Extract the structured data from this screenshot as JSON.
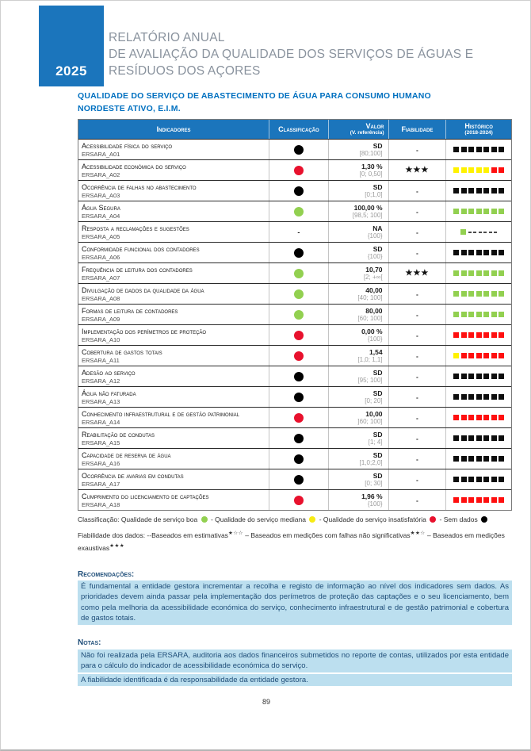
{
  "colors": {
    "brand_blue": "#1B75BC",
    "section_blue": "#0070C0",
    "title_gray": "#8A939E",
    "good_green": "#92D050",
    "medium_yellow": "#FFF200",
    "bad_red": "#FF0F0F",
    "no_data_black": "#000000",
    "note_text_blue": "#1F4E79",
    "highlight_blue": "#BCDFEF"
  },
  "header": {
    "year": "2025",
    "title_line1": "RELATÓRIO ANUAL",
    "title_line2": "DE AVALIAÇÃO DA QUALIDADE DOS SERVIÇOS DE ÁGUAS E",
    "title_line3": "RESÍDUOS DOS AÇORES"
  },
  "section": {
    "title_line1": "QUALIDADE DO SERVIÇO DE ABASTECIMENTO DE ÁGUA PARA CONSUMO HUMANO",
    "title_line2": "NORDESTE ATIVO, E.I.M."
  },
  "table": {
    "columns": {
      "indicadores": "Indicadores",
      "classificacao": "Classificação",
      "valor": "Valor",
      "valor_sub": "(V. referência)",
      "fiabilidade": "Fiabilidade",
      "historico": "Histórico",
      "historico_sub": "(2018-2024)"
    },
    "rows": [
      {
        "name": "Acessibilidade física do serviço",
        "code": "ERSARA_A01",
        "classification": "black",
        "value": "SD",
        "reference": "[80;100]",
        "reliability": "-",
        "history": [
          "black",
          "black",
          "black",
          "black",
          "black",
          "black",
          "black"
        ]
      },
      {
        "name": "Acessibilidade económica do serviço",
        "code": "ERSARA_A02",
        "classification": "red",
        "value": "1,30 %",
        "reference": "[0; 0,50]",
        "reliability": "★★★",
        "history": [
          "yellow",
          "yellow",
          "yellow",
          "yellow",
          "yellow",
          "red",
          "red"
        ]
      },
      {
        "name": "Ocorrência de falhas no abastecimento",
        "code": "ERSARA_A03",
        "classification": "black",
        "value": "SD",
        "reference": "[0;1,0]",
        "reliability": "-",
        "history": [
          "black",
          "black",
          "black",
          "black",
          "black",
          "black",
          "black"
        ]
      },
      {
        "name": "Água Segura",
        "code": "ERSARA_A04",
        "classification": "green",
        "value": "100,00 %",
        "reference": "[98,5; 100]",
        "reliability": "-",
        "history": [
          "green",
          "green",
          "green",
          "green",
          "green",
          "green",
          "green"
        ]
      },
      {
        "name": "Resposta a reclamações e sugestões",
        "code": "ERSARA_A05",
        "classification": "dash",
        "value": "NA",
        "reference": "{100}",
        "reliability": "-",
        "history": [
          "green",
          "dash",
          "dash",
          "dash",
          "dash",
          "dash",
          "dash"
        ]
      },
      {
        "name": "Conformidade funcional dos contadores",
        "code": "ERSARA_A06",
        "classification": "black",
        "value": "SD",
        "reference": "{100}",
        "reliability": "-",
        "history": [
          "black",
          "black",
          "black",
          "black",
          "black",
          "black",
          "black"
        ]
      },
      {
        "name": "Frequência de leitura dos contadores",
        "code": "ERSARA_A07",
        "classification": "green",
        "value": "10,70",
        "reference": "[2; +∞[",
        "reliability": "★★★",
        "history": [
          "green",
          "green",
          "green",
          "green",
          "green",
          "green",
          "green"
        ]
      },
      {
        "name": "Divulgação de dados da qualidade da água",
        "code": "ERSARA_A08",
        "classification": "green",
        "value": "40,00",
        "reference": "[40; 100]",
        "reliability": "-",
        "history": [
          "green",
          "green",
          "green",
          "green",
          "green",
          "green",
          "green"
        ]
      },
      {
        "name": "Formas de leitura de contadores",
        "code": "ERSARA_A09",
        "classification": "green",
        "value": "80,00",
        "reference": "[60; 100]",
        "reliability": "-",
        "history": [
          "green",
          "green",
          "green",
          "green",
          "green",
          "green",
          "green"
        ]
      },
      {
        "name": "Implementação dos perímetros de proteção",
        "code": "ERSARA_A10",
        "classification": "red",
        "value": "0,00 %",
        "reference": "{100}",
        "reliability": "-",
        "history": [
          "red",
          "red",
          "red",
          "red",
          "red",
          "red",
          "red"
        ]
      },
      {
        "name": "Cobertura de gastos totais",
        "code": "ERSARA_A11",
        "classification": "red",
        "value": "1,54",
        "reference": "[1,0; 1,1]",
        "reliability": "-",
        "history": [
          "yellow",
          "red",
          "red",
          "red",
          "red",
          "red",
          "red"
        ]
      },
      {
        "name": "Adesão ao serviço",
        "code": "ERSARA_A12",
        "classification": "black",
        "value": "SD",
        "reference": "[95; 100]",
        "reliability": "-",
        "history": [
          "black",
          "black",
          "black",
          "black",
          "black",
          "black",
          "black"
        ]
      },
      {
        "name": "Água não faturada",
        "code": "ERSARA_A13",
        "classification": "black",
        "value": "SD",
        "reference": "[0; 20]",
        "reliability": "-",
        "history": [
          "black",
          "black",
          "black",
          "black",
          "black",
          "black",
          "black"
        ]
      },
      {
        "name": "Conhecimento infraestrutural e de gestão patrimonial",
        "code": "ERSARA_A14",
        "classification": "red",
        "value": "10,00",
        "reference": "]60; 100]",
        "reliability": "-",
        "history": [
          "red",
          "red",
          "red",
          "red",
          "red",
          "red",
          "red"
        ]
      },
      {
        "name": "Reabilitação de condutas",
        "code": "ERSARA_A15",
        "classification": "black",
        "value": "SD",
        "reference": "[1; 4]",
        "reliability": "-",
        "history": [
          "black",
          "black",
          "black",
          "black",
          "black",
          "black",
          "black"
        ]
      },
      {
        "name": "Capacidade de reserva de água",
        "code": "ERSARA_A16",
        "classification": "black",
        "value": "SD",
        "reference": "[1,0;2,0]",
        "reliability": "-",
        "history": [
          "black",
          "black",
          "black",
          "black",
          "black",
          "black",
          "black"
        ]
      },
      {
        "name": "Ocorrência de avarias em condutas",
        "code": "ERSARA_A17",
        "classification": "black",
        "value": "SD",
        "reference": "[0; 30]",
        "reliability": "-",
        "history": [
          "black",
          "black",
          "black",
          "black",
          "black",
          "black",
          "black"
        ]
      },
      {
        "name": "Cumprimento do licenciamento de captações",
        "code": "ERSARA_A18",
        "classification": "red",
        "value": "1,96 %",
        "reference": "{100}",
        "reliability": "-",
        "history": [
          "red",
          "red",
          "red",
          "red",
          "red",
          "red",
          "red"
        ]
      }
    ]
  },
  "classification_legend": {
    "prefix": "Classificação:",
    "items": [
      {
        "label": "Qualidade de serviço boa",
        "color": "green"
      },
      {
        "label": "Qualidade do serviço mediana",
        "color": "yellow"
      },
      {
        "label": "Qualidade do serviço insatisfatória",
        "color": "red"
      },
      {
        "label": "Sem dados",
        "color": "black"
      }
    ],
    "separator": " - "
  },
  "reliability_legend": {
    "prefix": "Fiabilidade dos dados:",
    "items": [
      {
        "label": "--Baseados em estimativas",
        "stars": "★☆☆"
      },
      {
        "label": "– Baseados em medições com falhas não significativas",
        "stars": "★★☆"
      },
      {
        "label": "– Baseados em medições exaustivas",
        "stars": "★★★"
      }
    ]
  },
  "recommendations": {
    "label": "Recomendações:",
    "text": "É fundamental a entidade gestora incrementar a recolha e registo de informação ao nível dos indicadores sem dados. As prioridades devem ainda passar pela implementação dos perímetros de proteção das captações e o seu licenciamento, bem como pela melhoria da acessibilidade económica do serviço, conhecimento infraestrutural e de gestão patrimonial e cobertura de gastos totais."
  },
  "notes": {
    "label": "Notas:",
    "paragraphs": [
      "Não foi realizada pela ERSARA, auditoria aos dados financeiros submetidos no reporte de contas, utilizados por esta entidade para o cálculo do indicador de acessibilidade económica do serviço.",
      "A fiabilidade identificada é da responsabilidade da entidade gestora."
    ]
  },
  "footer": {
    "page_number": "89"
  }
}
